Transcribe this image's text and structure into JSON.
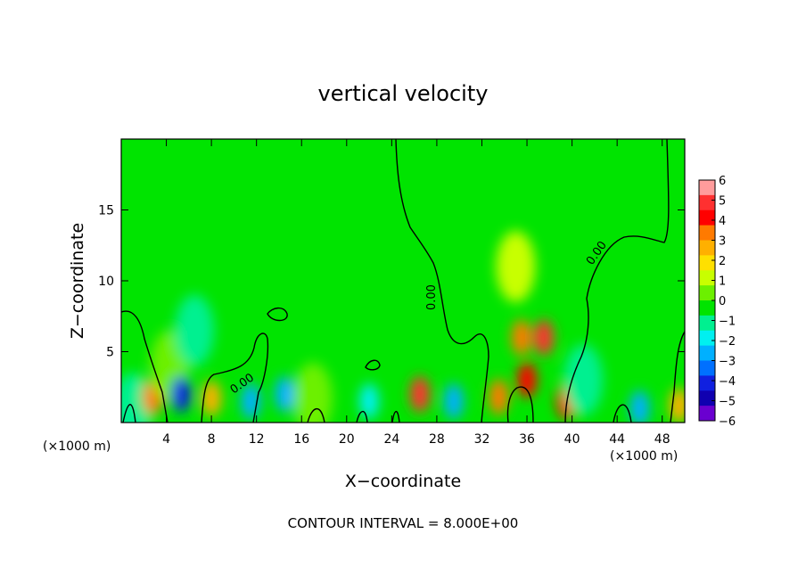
{
  "chart_data": {
    "type": "heatmap",
    "title": "vertical velocity",
    "xlabel": "X−coordinate",
    "ylabel": "Z−coordinate",
    "x_unit_left": "(×1000 m)",
    "x_unit_right": "(×1000 m)",
    "footer": "CONTOUR INTERVAL = 8.000E+00",
    "xlim": [
      0,
      50
    ],
    "ylim": [
      0,
      20
    ],
    "xticks": [
      4,
      8,
      12,
      16,
      20,
      24,
      28,
      32,
      36,
      40,
      44,
      48
    ],
    "xtick_labels": [
      "4",
      "8",
      "12",
      "16",
      "20",
      "24",
      "28",
      "32",
      "36",
      "40",
      "44",
      "48"
    ],
    "yticks": [
      5,
      10,
      15
    ],
    "ytick_labels": [
      "5",
      "10",
      "15"
    ],
    "contour_labels": [
      "0.00",
      "0.00",
      "0.00"
    ],
    "colorbar": {
      "ticks": [
        6,
        5,
        4,
        3,
        2,
        1,
        0,
        -1,
        -2,
        -3,
        -4,
        -5,
        -6
      ],
      "tick_labels": [
        "6",
        "5",
        "4",
        "3",
        "2",
        "1",
        "0",
        "−1",
        "−2",
        "−3",
        "−4",
        "−5",
        "−6"
      ],
      "colors": [
        "#ff9c9c",
        "#ff3030",
        "#ff0000",
        "#ff7a00",
        "#ffb000",
        "#ffe000",
        "#c8ff00",
        "#6cf000",
        "#00e400",
        "#00f090",
        "#00f0f0",
        "#00b0ff",
        "#0070ff",
        "#1020e0",
        "#1000b0",
        "#6a00d0"
      ]
    },
    "features": [
      {
        "x": 1.0,
        "z": 1.0,
        "w": -1.5
      },
      {
        "x": 2.8,
        "z": 1.8,
        "w": 3.5
      },
      {
        "x": 4.3,
        "z": 4.0,
        "w": 0.6
      },
      {
        "x": 5.3,
        "z": 2.0,
        "w": -4.0
      },
      {
        "x": 6.5,
        "z": 6.5,
        "w": -1.2
      },
      {
        "x": 8.0,
        "z": 1.7,
        "w": 3.0
      },
      {
        "x": 11.5,
        "z": 1.5,
        "w": -2.5
      },
      {
        "x": 14.5,
        "z": 2.0,
        "w": -2.5
      },
      {
        "x": 17.0,
        "z": 1.7,
        "w": 0.8
      },
      {
        "x": 22.0,
        "z": 1.5,
        "w": -2.0
      },
      {
        "x": 26.5,
        "z": 2.0,
        "w": 5.0
      },
      {
        "x": 29.5,
        "z": 1.5,
        "w": -2.5
      },
      {
        "x": 33.5,
        "z": 1.8,
        "w": 4.0
      },
      {
        "x": 35.5,
        "z": 6.0,
        "w": 3.5
      },
      {
        "x": 37.5,
        "z": 6.0,
        "w": 5.0
      },
      {
        "x": 36.0,
        "z": 3.0,
        "w": 4.5
      },
      {
        "x": 35.0,
        "z": 11.0,
        "w": 1.2
      },
      {
        "x": 39.5,
        "z": 1.5,
        "w": 4.5
      },
      {
        "x": 41.0,
        "z": 3.0,
        "w": -1.0
      },
      {
        "x": 46.0,
        "z": 1.0,
        "w": -2.5
      },
      {
        "x": 49.5,
        "z": 1.2,
        "w": 2.5
      }
    ]
  }
}
